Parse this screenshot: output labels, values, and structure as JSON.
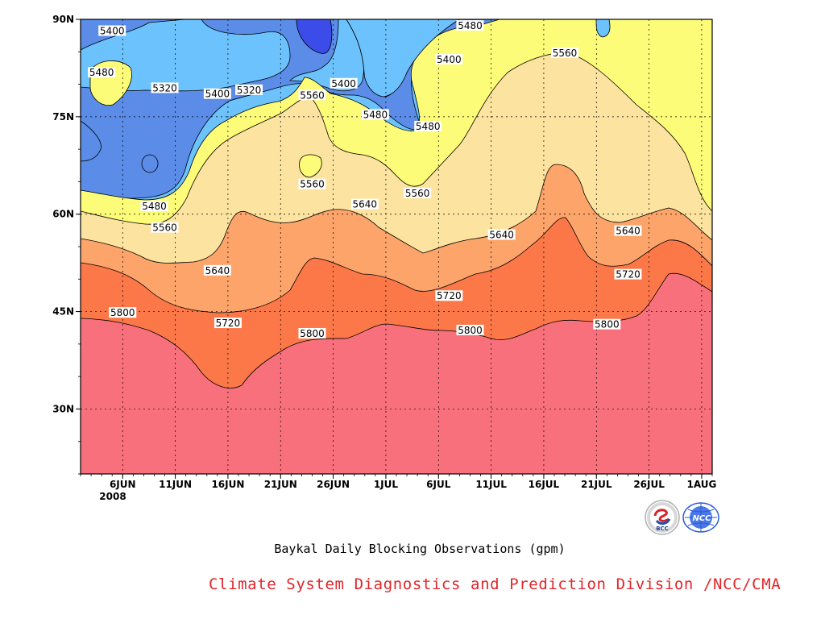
{
  "chart_data": {
    "type": "contour",
    "title": "Baykal Daily Blocking Observations (gpm)",
    "x_ticks": [
      "6JUN",
      "11JUN",
      "16JUN",
      "21JUN",
      "26JUN",
      "1JUL",
      "6JUL",
      "11JUL",
      "16JUL",
      "21JUL",
      "26JUL",
      "1AUG"
    ],
    "x_year": "2008",
    "x_range": [
      "2008-06-02",
      "2008-08-01"
    ],
    "y_ticks": [
      "90N",
      "75N",
      "60N",
      "45N",
      "30N"
    ],
    "y_range": [
      20,
      90
    ],
    "grid": true,
    "levels": [
      5320,
      5400,
      5480,
      5560,
      5640,
      5720,
      5800
    ],
    "colors": {
      "below_5320": "#3c4ce8",
      "5320_5400": "#5a8ce8",
      "5400_5480": "#6cc2fc",
      "5480_5560": "#fcfc78",
      "5560_5640": "#fce4a0",
      "5640_5720": "#fca46a",
      "5720_5800": "#fc7848",
      "above_5800": "#f8707c"
    },
    "contour_labels": [
      {
        "text": "5400",
        "date": "2008-06-05",
        "lat": 88.2
      },
      {
        "text": "5480",
        "date": "2008-06-04",
        "lat": 81.8
      },
      {
        "text": "5320",
        "date": "2008-06-10",
        "lat": 79.4
      },
      {
        "text": "5400",
        "date": "2008-06-15",
        "lat": 78.5
      },
      {
        "text": "5320",
        "date": "2008-06-18",
        "lat": 79.1
      },
      {
        "text": "5400",
        "date": "2008-06-27",
        "lat": 80.1
      },
      {
        "text": "5560",
        "date": "2008-06-24",
        "lat": 78.3
      },
      {
        "text": "5480",
        "date": "2008-06-30",
        "lat": 75.3
      },
      {
        "text": "5480",
        "date": "2008-07-09",
        "lat": 89.0
      },
      {
        "text": "5400",
        "date": "2008-07-07",
        "lat": 83.8
      },
      {
        "text": "5480",
        "date": "2008-07-05",
        "lat": 73.5
      },
      {
        "text": "5560",
        "date": "2008-07-18",
        "lat": 84.8
      },
      {
        "text": "5560",
        "date": "2008-06-24",
        "lat": 64.6
      },
      {
        "text": "5560",
        "date": "2008-07-04",
        "lat": 63.2
      },
      {
        "text": "5480",
        "date": "2008-06-09",
        "lat": 61.2
      },
      {
        "text": "5560",
        "date": "2008-06-10",
        "lat": 57.9
      },
      {
        "text": "5640",
        "date": "2008-06-29",
        "lat": 61.5
      },
      {
        "text": "5640",
        "date": "2008-07-12",
        "lat": 56.8
      },
      {
        "text": "5640",
        "date": "2008-06-15",
        "lat": 51.3
      },
      {
        "text": "5640",
        "date": "2008-07-24",
        "lat": 57.4
      },
      {
        "text": "5720",
        "date": "2008-07-24",
        "lat": 50.7
      },
      {
        "text": "5720",
        "date": "2008-07-07",
        "lat": 47.4
      },
      {
        "text": "5720",
        "date": "2008-06-16",
        "lat": 43.2
      },
      {
        "text": "5800",
        "date": "2008-06-06",
        "lat": 44.8
      },
      {
        "text": "5800",
        "date": "2008-06-24",
        "lat": 41.6
      },
      {
        "text": "5800",
        "date": "2008-07-09",
        "lat": 42.1
      },
      {
        "text": "5800",
        "date": "2008-07-22",
        "lat": 43.0
      }
    ]
  },
  "footer": {
    "credit": "Climate System Diagnostics and Prediction Division /NCC/CMA"
  },
  "logos": {
    "bcc_text": "BCC",
    "ncc_text": "NCC"
  }
}
